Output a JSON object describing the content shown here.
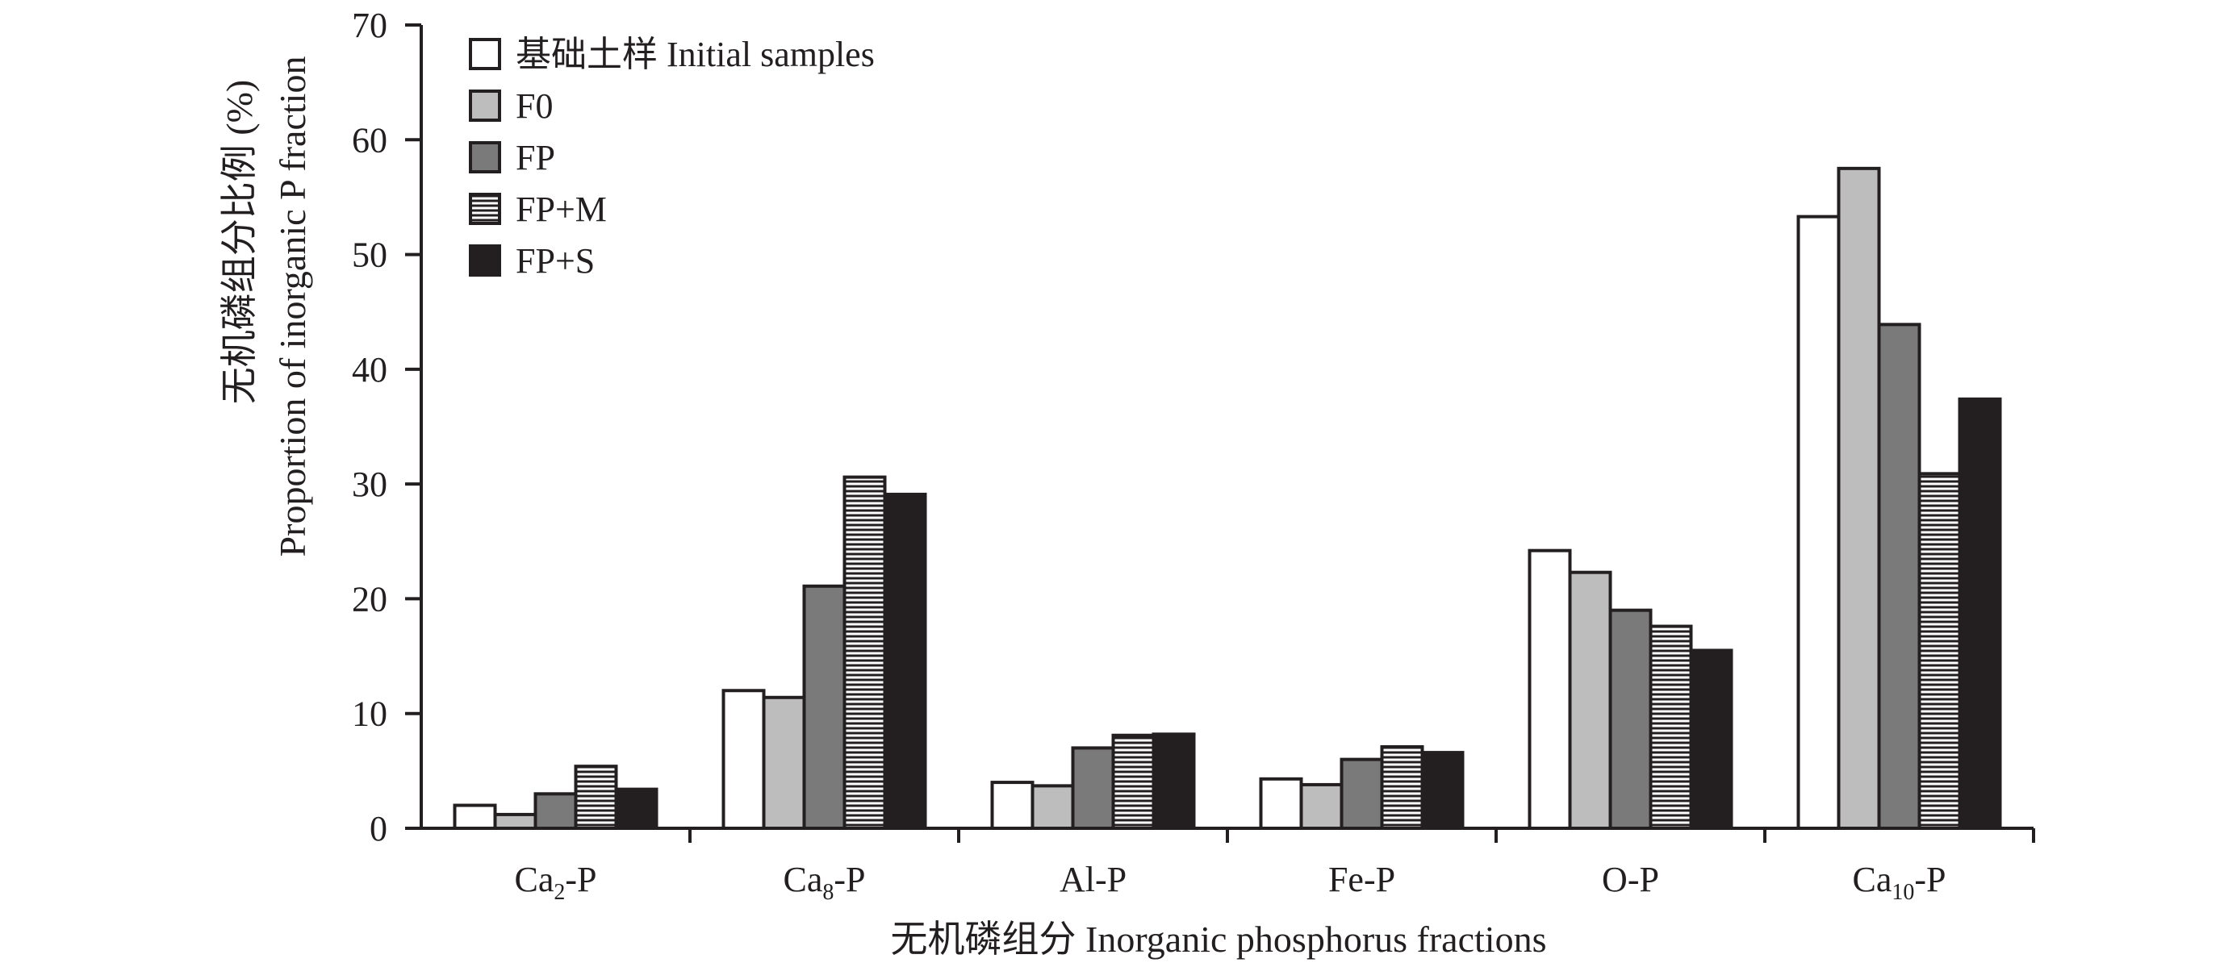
{
  "chart_data": {
    "type": "bar",
    "categories": [
      "Ca2-P",
      "Ca8-P",
      "Al-P",
      "Fe-P",
      "O-P",
      "Ca10-P"
    ],
    "category_labels": [
      {
        "main": "Ca",
        "sub": "2",
        "suffix": "-P"
      },
      {
        "main": "Ca",
        "sub": "8",
        "suffix": "-P"
      },
      {
        "main": "Al-P",
        "sub": "",
        "suffix": ""
      },
      {
        "main": "Fe-P",
        "sub": "",
        "suffix": ""
      },
      {
        "main": "O-P",
        "sub": "",
        "suffix": ""
      },
      {
        "main": "Ca",
        "sub": "10",
        "suffix": "-P"
      }
    ],
    "series": [
      {
        "name": "基础土样 Initial samples",
        "fill": "#ffffff",
        "pattern": "none",
        "values": [
          2.0,
          12.0,
          4.0,
          4.3,
          24.2,
          53.3
        ]
      },
      {
        "name": "F0",
        "fill": "#bdbdbd",
        "pattern": "none",
        "values": [
          1.2,
          11.4,
          3.7,
          3.8,
          22.3,
          57.5
        ]
      },
      {
        "name": "FP",
        "fill": "#7a7a7a",
        "pattern": "none",
        "values": [
          3.0,
          21.1,
          7.0,
          6.0,
          19.0,
          43.9
        ]
      },
      {
        "name": "FP+M",
        "fill": "#ffffff",
        "pattern": "horizontal-stripes",
        "values": [
          5.4,
          30.6,
          8.1,
          7.1,
          17.6,
          30.9
        ]
      },
      {
        "name": "FP+S",
        "fill": "#231f20",
        "pattern": "none",
        "values": [
          3.4,
          29.1,
          8.2,
          6.6,
          15.5,
          37.4
        ]
      }
    ],
    "ylim": [
      0,
      70
    ],
    "yticks": [
      "0",
      "10",
      "20",
      "30",
      "40",
      "50",
      "60",
      "70"
    ],
    "ylabel_line1": "无机磷组分比例 (%)",
    "ylabel_line2": "Proportion of inorganic P fraction",
    "xlabel": "无机磷组分 Inorganic phosphorus fractions",
    "legend_position": "top-left",
    "grid": false
  }
}
